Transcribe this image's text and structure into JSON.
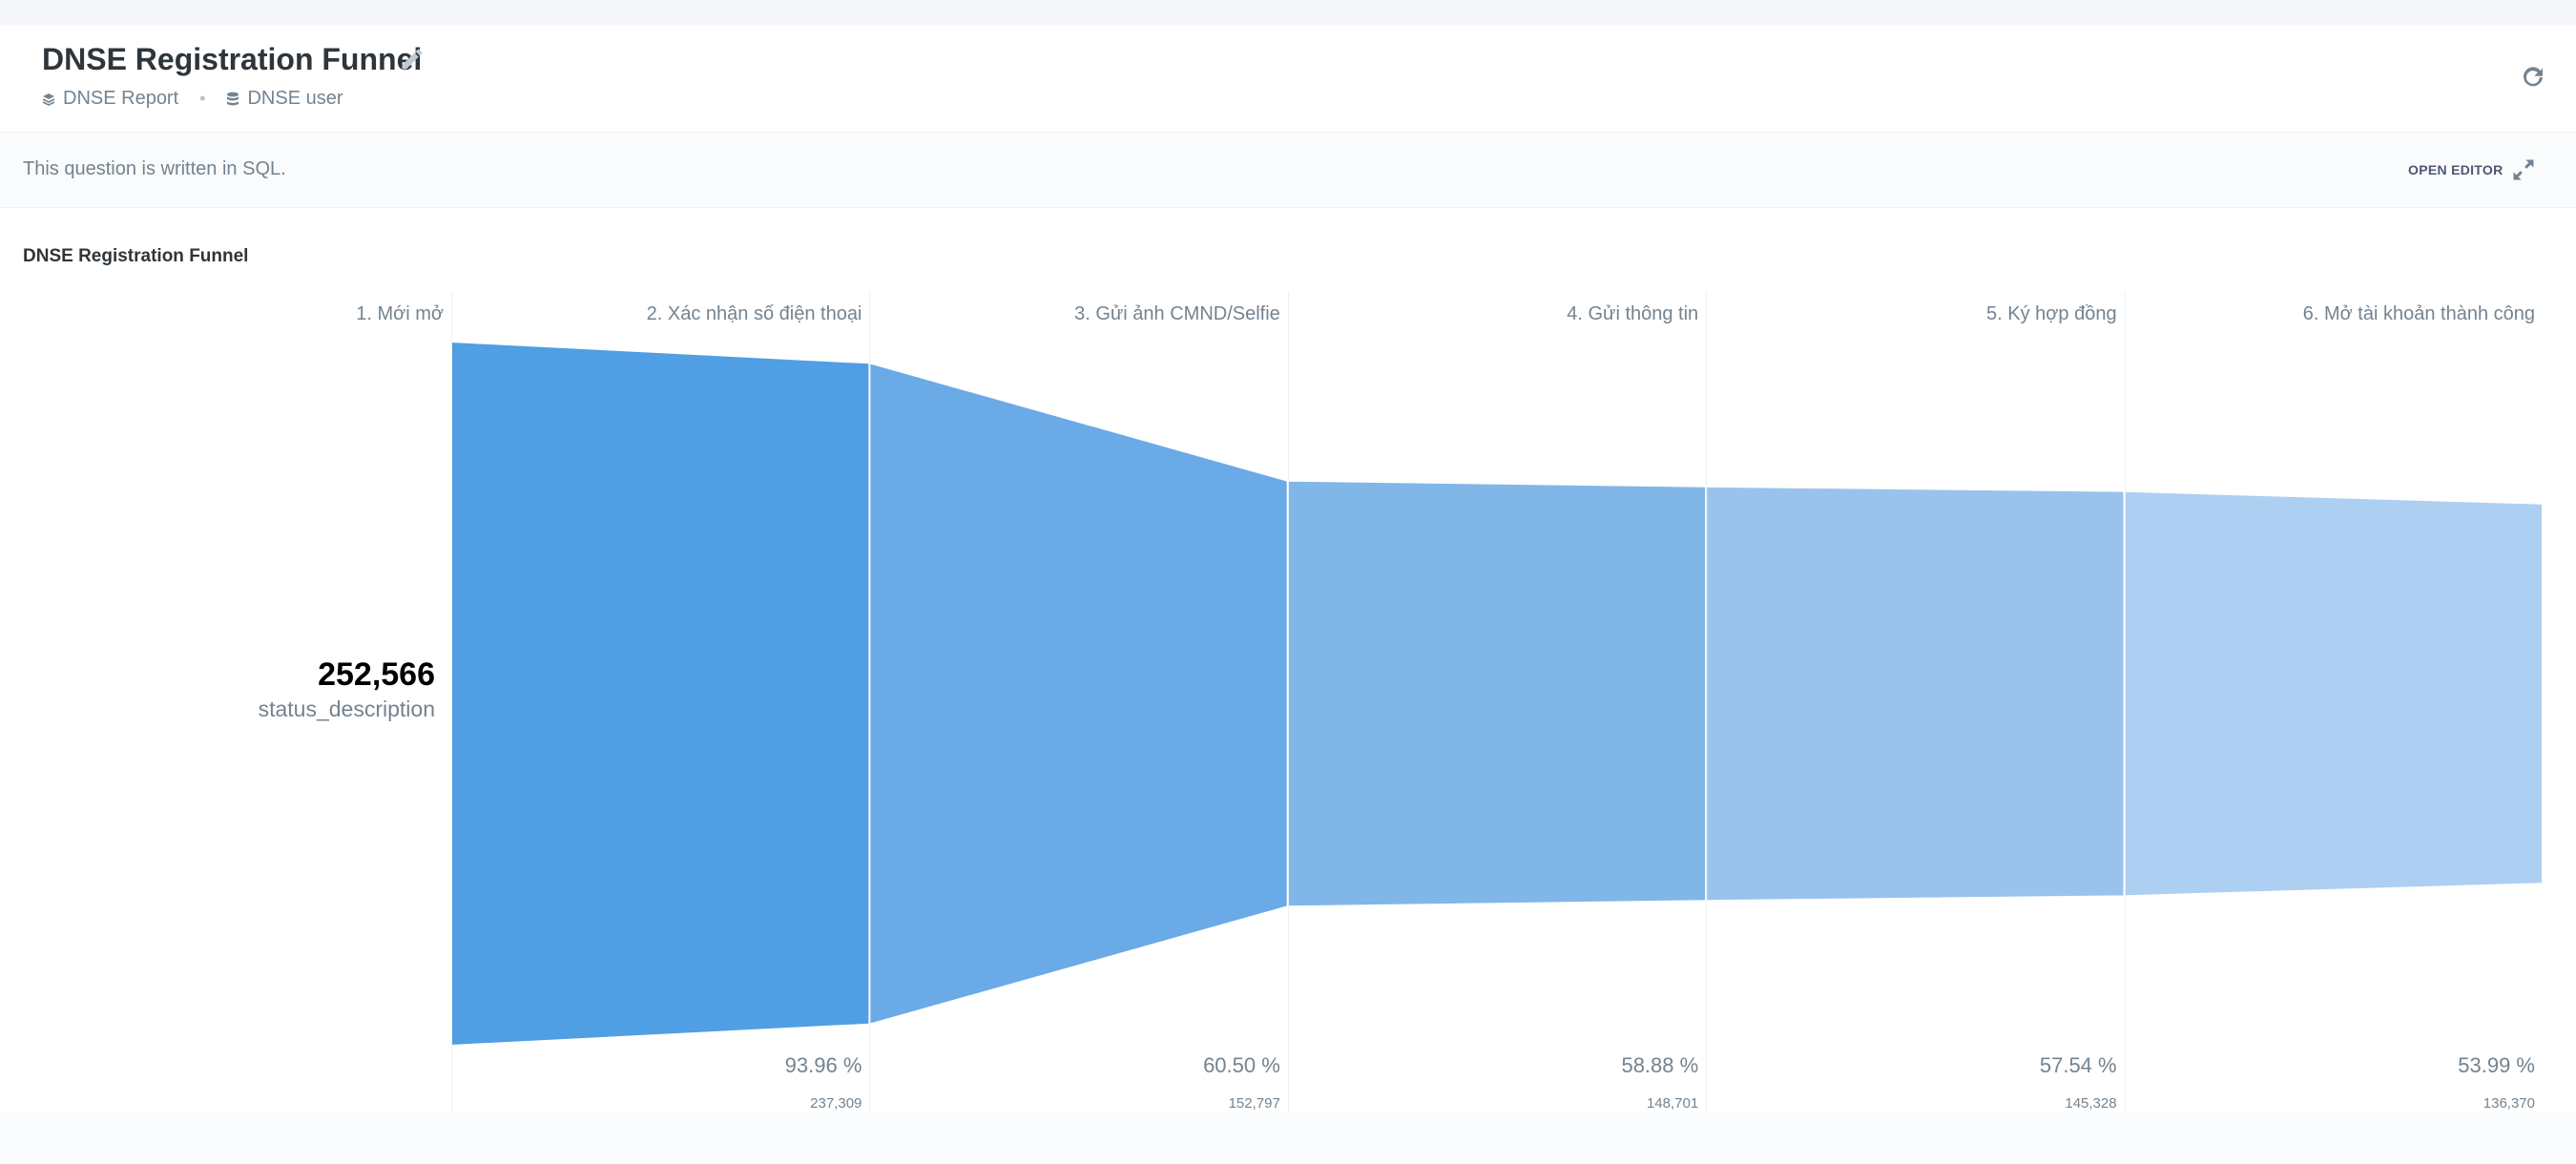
{
  "header": {
    "title": "DNSE Registration Funnel",
    "breadcrumbs": [
      "DNSE Report",
      "DNSE user"
    ]
  },
  "sql_bar": {
    "text": "This question is written in SQL.",
    "open_editor_label": "OPEN EDITOR"
  },
  "chart_title": "DNSE Registration Funnel",
  "total": {
    "value": "252,566",
    "metric": "status_description"
  },
  "colors": {
    "funnel": [
      "#509ee3",
      "#6aaae6",
      "#80b6e8",
      "#99c3ed",
      "#adcff2"
    ]
  },
  "chart_data": {
    "type": "funnel",
    "steps": [
      {
        "label": "1. Mới mở",
        "value": 252566,
        "percent": null,
        "count": null
      },
      {
        "label": "2. Xác nhận số điện thoại",
        "value": 237309,
        "percent": "93.96 %",
        "count": "237,309"
      },
      {
        "label": "3. Gửi ảnh CMND/Selfie",
        "value": 152797,
        "percent": "60.50 %",
        "count": "152,797"
      },
      {
        "label": "4. Gửi thông tin",
        "value": 148701,
        "percent": "58.88 %",
        "count": "148,701"
      },
      {
        "label": "5. Ký hợp đồng",
        "value": 145328,
        "percent": "57.54 %",
        "count": "145,328"
      },
      {
        "label": "6. Mở tài khoản thành công",
        "value": 136370,
        "percent": "53.99 %",
        "count": "136,370"
      }
    ]
  }
}
